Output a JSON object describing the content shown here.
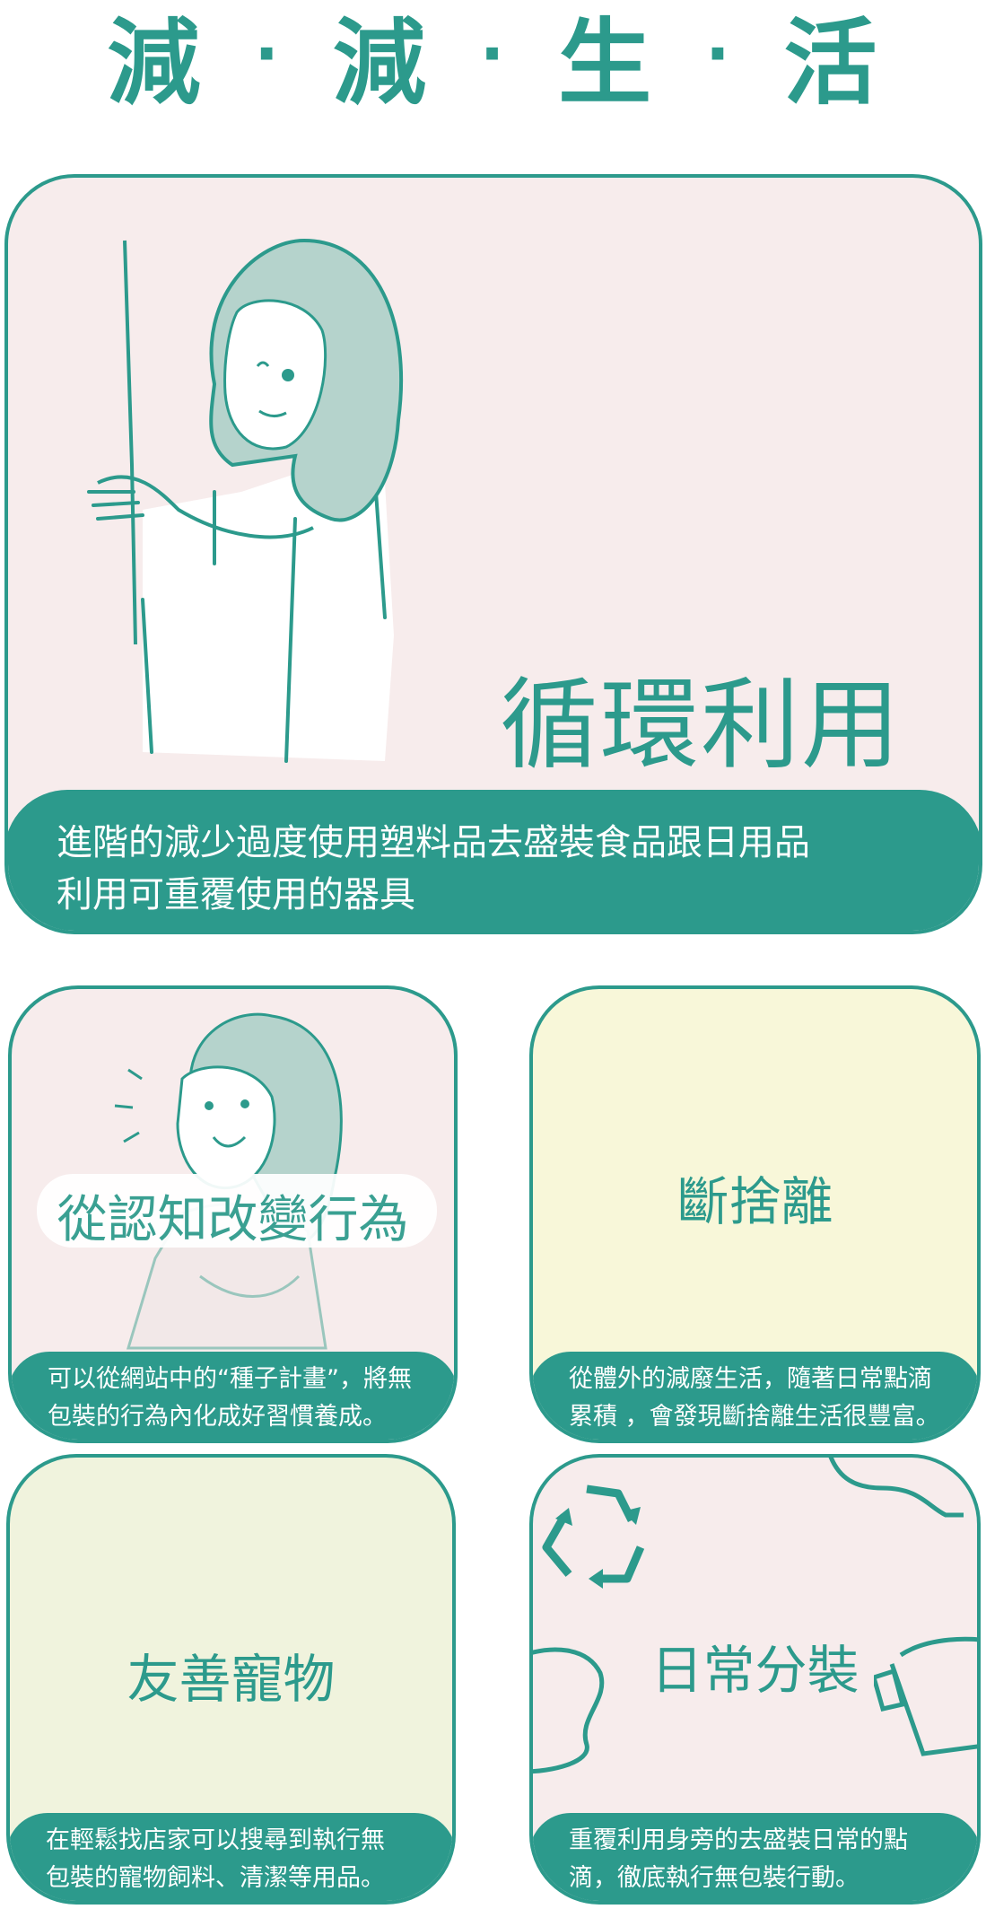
{
  "title": {
    "chars": [
      "減",
      "減",
      "生",
      "活"
    ],
    "separator": "·"
  },
  "hero": {
    "headline": "循環利用",
    "description_line1": "進階的減少過度使用塑料品去盛裝食品跟日用品",
    "description_line2": "利用可重覆使用的器具"
  },
  "cards": [
    {
      "label": "從認知改變行為",
      "caption_line1": "可以從網站中的“種子計畫”，將無",
      "caption_line2": "包裝的行為內化成好習慣養成。",
      "background": "#f7ecec"
    },
    {
      "label": "斷捨離",
      "caption_line1": "從體外的減廢生活，隨著日常點滴",
      "caption_line2": "累積 ，會發現斷捨離生活很豐富。",
      "background": "#f8f7d9"
    },
    {
      "label": "友善寵物",
      "caption_line1": "在輕鬆找店家可以搜尋到執行無",
      "caption_line2": "包裝的寵物飼料、清潔等用品。",
      "background": "#f0f3dd"
    },
    {
      "label": "日常分裝",
      "caption_line1": "重覆利用身旁的去盛裝日常的點",
      "caption_line2": "滴，徹底執行無包裝行動。",
      "background": "#f7ecec"
    }
  ],
  "colors": {
    "accent": "#2c9a8c",
    "hair": "#b5d3cc",
    "pink_bg": "#f7ecec"
  },
  "icons": [
    "woman-illustration",
    "smiling-woman-illustration",
    "recycle-icon",
    "cup-illustration"
  ]
}
